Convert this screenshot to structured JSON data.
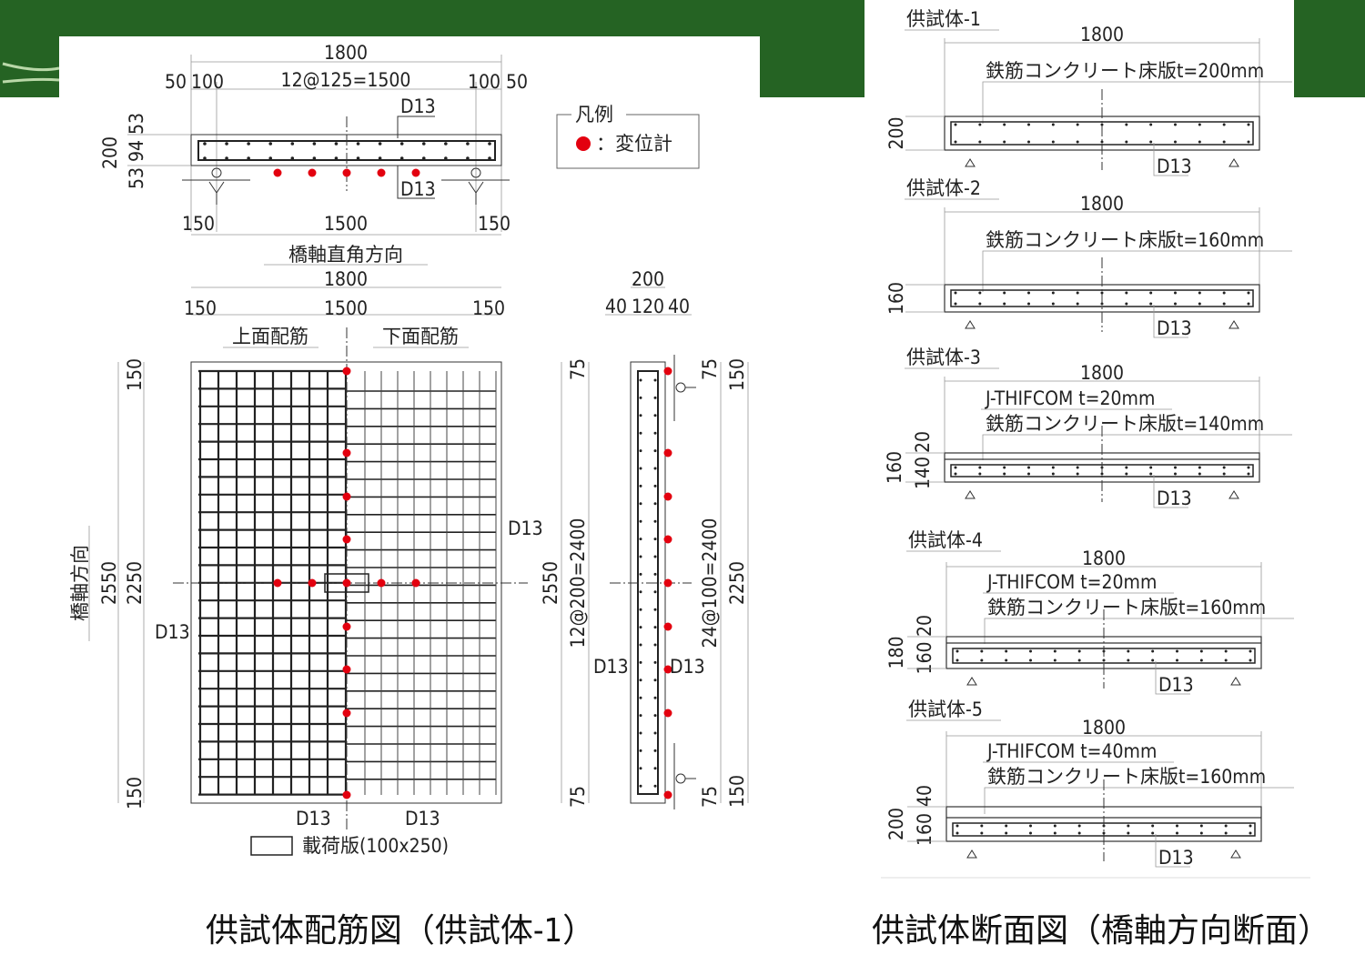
{
  "colors": {
    "banner_green": "#256323",
    "sensor_red": "#e3000f",
    "line": "#222222"
  },
  "plan_section": {
    "overall": "1800",
    "spacing": "12@125=1500",
    "left_edge": "50",
    "left_cover": "100",
    "right_cover": "100",
    "right_edge": "50",
    "rebar_top": "D13",
    "rebar_bottom": "D13",
    "v_total": "200",
    "v_top": "53",
    "v_mid": "94",
    "v_bot": "53",
    "span_left": "150",
    "span_mid": "1500",
    "span_right": "150",
    "direction_label": "橋軸直角方向"
  },
  "legend": {
    "title": "凡例",
    "item": "：変位計",
    "icon": "red-dot"
  },
  "plan_view": {
    "overall": "1800",
    "left": "150",
    "mid": "1500",
    "right": "150",
    "top_bars": "上面配筋",
    "bottom_bars": "下面配筋",
    "v_overall": "2550",
    "v_mid": "2250",
    "v_top": "150",
    "v_bot": "150",
    "axis_label": "橋軸方向",
    "rebar_right": "D13",
    "rebar_left": "D13",
    "rebar_bottom_left": "D13",
    "rebar_bottom_right": "D13",
    "load_plate": "載荷版(100x250)"
  },
  "side_view": {
    "overall": "200",
    "left": "40",
    "mid": "120",
    "right": "40",
    "left_top": "75",
    "left_bot": "75",
    "left_total": "2550",
    "left_spacing": "12@200=2400",
    "right_spacing": "24@100=2400",
    "right_total": "2250",
    "right_top_a": "75",
    "right_top_b": "150",
    "right_bot_a": "75",
    "right_bot_b": "150",
    "rebar_left": "D13",
    "rebar_right": "D13"
  },
  "specimens": [
    {
      "title": "供試体-1",
      "width": "1800",
      "overlay": "",
      "slab": "鉄筋コンクリート床版t=200mm",
      "dims": [
        "200"
      ],
      "rebar": "D13"
    },
    {
      "title": "供試体-2",
      "width": "1800",
      "overlay": "",
      "slab": "鉄筋コンクリート床版t=160mm",
      "dims": [
        "160"
      ],
      "rebar": "D13"
    },
    {
      "title": "供試体-3",
      "width": "1800",
      "overlay": "J-THIFCOM  t=20mm",
      "slab": "鉄筋コンクリート床版t=140mm",
      "dims": [
        "160",
        "20",
        "140"
      ],
      "rebar": "D13"
    },
    {
      "title": "供試体-4",
      "width": "1800",
      "overlay": "J-THIFCOM  t=20mm",
      "slab": "鉄筋コンクリート床版t=160mm",
      "dims": [
        "180",
        "20",
        "160"
      ],
      "rebar": "D13"
    },
    {
      "title": "供試体-5",
      "width": "1800",
      "overlay": "J-THIFCOM  t=40mm",
      "slab": "鉄筋コンクリート床版t=160mm",
      "dims": [
        "200",
        "40",
        "160"
      ],
      "rebar": "D13"
    }
  ],
  "captions": {
    "left": "供試体配筋図（供試体-1）",
    "right": "供試体断面図（橋軸方向断面）"
  }
}
